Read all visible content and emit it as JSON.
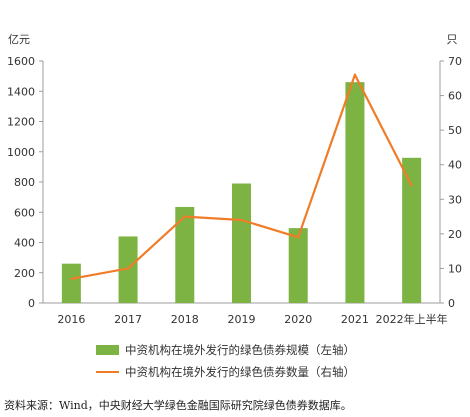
{
  "chart_data": {
    "type": "bar",
    "categories": [
      "2016",
      "2017",
      "2018",
      "2019",
      "2020",
      "2021",
      "2022年上半年"
    ],
    "series": [
      {
        "name": "中资机构在境外发行的绿色债券规模（左轴）",
        "type": "bar",
        "axis": "left",
        "color": "#7cb342",
        "values": [
          260,
          440,
          635,
          790,
          495,
          1460,
          960
        ]
      },
      {
        "name": "中资机构在境外发行的绿色债券数量（右轴）",
        "type": "line",
        "axis": "right",
        "color": "#f07c28",
        "values": [
          7,
          10,
          25,
          24,
          19,
          66,
          34
        ]
      }
    ],
    "y_left": {
      "unit_label": "亿元",
      "ticks": [
        "0",
        "200",
        "400",
        "600",
        "800",
        "1000",
        "1200",
        "1400",
        "1600"
      ],
      "ylim": [
        0,
        1600
      ]
    },
    "y_right": {
      "unit_label": "只",
      "ticks": [
        "0",
        "10",
        "20",
        "30",
        "40",
        "50",
        "60",
        "70"
      ],
      "ylim": [
        0,
        70
      ]
    },
    "grid": false,
    "legend_position": "bottom"
  },
  "source_note": "资料来源：Wind，中央财经大学绿色金融国际研究院绿色债券数据库。"
}
